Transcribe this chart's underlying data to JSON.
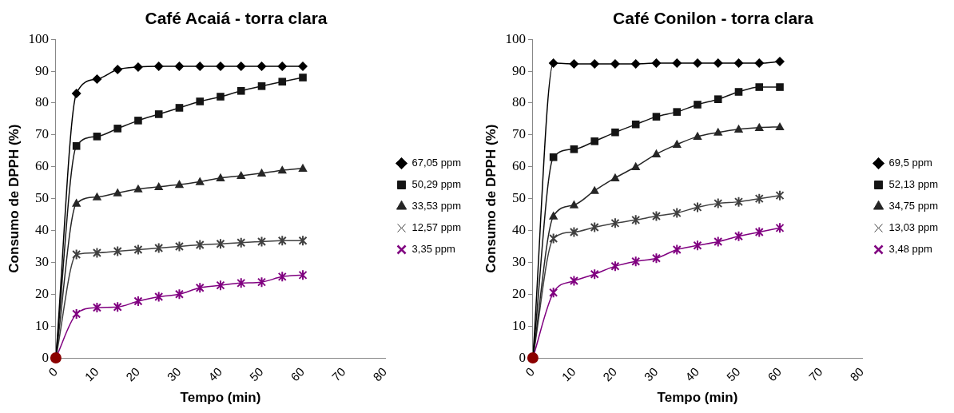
{
  "chart_data": [
    {
      "type": "line",
      "title": "Café Acaiá - torra clara",
      "xlabel": "Tempo (min)",
      "ylabel": "Consumo de DPPH (%)",
      "x": [
        0,
        5,
        10,
        15,
        20,
        25,
        30,
        35,
        40,
        45,
        50,
        55,
        60
      ],
      "xlim": [
        0,
        80
      ],
      "xticks": [
        0,
        10,
        20,
        30,
        40,
        50,
        60,
        70,
        80
      ],
      "ylim": [
        0,
        100
      ],
      "yticks": [
        0,
        10,
        20,
        30,
        40,
        50,
        60,
        70,
        80,
        90,
        100
      ],
      "grid": false,
      "legend": "right",
      "line_style": "solid",
      "series": [
        {
          "name": "67,05 ppm",
          "color": "#000000",
          "marker": "diamond",
          "values": [
            0,
            83,
            87.5,
            90.5,
            91.3,
            91.5,
            91.5,
            91.5,
            91.5,
            91.5,
            91.5,
            91.5,
            91.5
          ]
        },
        {
          "name": "50,29 ppm",
          "color": "#141414",
          "marker": "square",
          "values": [
            0,
            66.5,
            69.5,
            72,
            74.5,
            76.5,
            78.5,
            80.5,
            82,
            83.8,
            85.3,
            86.7,
            88
          ]
        },
        {
          "name": "33,53 ppm",
          "color": "#262626",
          "marker": "triangle",
          "values": [
            0,
            48.5,
            50.5,
            51.8,
            53,
            53.7,
            54.4,
            55.3,
            56.5,
            57.2,
            58,
            58.9,
            59.5
          ]
        },
        {
          "name": "12,57 ppm",
          "color": "#404040",
          "marker": "cross",
          "values": [
            0,
            32.5,
            33,
            33.5,
            34,
            34.5,
            35,
            35.5,
            35.8,
            36.2,
            36.5,
            36.8,
            36.8
          ]
        },
        {
          "name": "3,35 ppm",
          "color": "#800080",
          "marker": "cross",
          "values": [
            0,
            13.8,
            15.8,
            16,
            17.8,
            19.2,
            20,
            22,
            22.8,
            23.5,
            23.8,
            25.5,
            26
          ]
        },
        {
          "type": "scatter",
          "color": "#8b0000",
          "marker": "circle",
          "x": [
            0
          ],
          "values": [
            0
          ]
        }
      ]
    },
    {
      "type": "line",
      "title": "Café Conilon - torra clara",
      "xlabel": "Tempo (min)",
      "ylabel": "Consumo de DPPH (%)",
      "x": [
        0,
        5,
        10,
        15,
        20,
        25,
        30,
        35,
        40,
        45,
        50,
        55,
        60
      ],
      "xlim": [
        0,
        80
      ],
      "xticks": [
        0,
        10,
        20,
        30,
        40,
        50,
        60,
        70,
        80
      ],
      "ylim": [
        0,
        100
      ],
      "yticks": [
        0,
        10,
        20,
        30,
        40,
        50,
        60,
        70,
        80,
        90,
        100
      ],
      "grid": false,
      "legend": "right",
      "line_style": "solid",
      "series": [
        {
          "name": "69,5 ppm",
          "color": "#000000",
          "marker": "diamond",
          "values": [
            0,
            92.5,
            92.3,
            92.3,
            92.3,
            92.3,
            92.5,
            92.5,
            92.5,
            92.5,
            92.5,
            92.5,
            93
          ]
        },
        {
          "name": "52,13 ppm",
          "color": "#141414",
          "marker": "square",
          "values": [
            0,
            63,
            65.5,
            68,
            70.8,
            73.3,
            75.7,
            77.2,
            79.5,
            81.2,
            83.5,
            85,
            85
          ]
        },
        {
          "name": "34,75 ppm",
          "color": "#262626",
          "marker": "triangle",
          "values": [
            0,
            44.5,
            48,
            52.5,
            56.5,
            60,
            64,
            67,
            69.5,
            70.8,
            71.8,
            72.3,
            72.5
          ]
        },
        {
          "name": "13,03 ppm",
          "color": "#404040",
          "marker": "cross",
          "values": [
            0,
            37.5,
            39.5,
            41,
            42.3,
            43.3,
            44.5,
            45.5,
            47.3,
            48.5,
            49,
            50,
            51
          ]
        },
        {
          "name": "3,48 ppm",
          "color": "#800080",
          "marker": "cross",
          "values": [
            0,
            20.5,
            24.2,
            26.3,
            28.8,
            30.3,
            31.3,
            34,
            35.3,
            36.5,
            38.2,
            39.5,
            40.8
          ]
        },
        {
          "type": "scatter",
          "color": "#8b0000",
          "marker": "circle",
          "x": [
            0
          ],
          "values": [
            0
          ]
        }
      ]
    }
  ]
}
